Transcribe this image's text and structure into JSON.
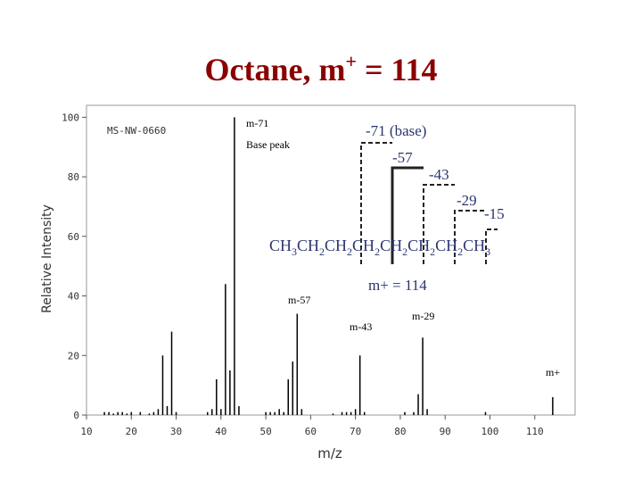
{
  "chart_data": {
    "type": "stem",
    "title_parts": [
      "Octane, m",
      "+",
      " = 114"
    ],
    "x_label": "m/z",
    "y_label": "Relative Intensity",
    "x": [
      14,
      15,
      16,
      17,
      18,
      19,
      20,
      22,
      24,
      25,
      26,
      27,
      28,
      29,
      30,
      37,
      38,
      39,
      40,
      41,
      42,
      43,
      44,
      50,
      51,
      52,
      53,
      54,
      55,
      56,
      57,
      58,
      65,
      67,
      68,
      69,
      70,
      71,
      72,
      81,
      83,
      84,
      85,
      86,
      99,
      114
    ],
    "values": [
      1,
      1,
      0.5,
      1,
      1,
      0.5,
      1,
      1,
      0.5,
      1,
      2,
      20,
      3,
      28,
      1,
      1,
      2,
      12,
      2,
      44,
      15,
      100,
      3,
      1,
      1,
      1,
      2,
      1,
      12,
      18,
      34,
      2,
      0.5,
      1,
      1,
      1,
      2,
      20,
      1,
      1,
      1,
      7,
      26,
      2,
      1,
      6
    ],
    "color": "#000000",
    "xlim": [
      10,
      119
    ],
    "ylim": [
      0,
      104
    ],
    "xticks": [
      10,
      20,
      30,
      40,
      50,
      60,
      70,
      80,
      90,
      100,
      110
    ],
    "yticks": [
      0,
      20,
      40,
      60,
      80,
      100
    ],
    "sample_id": "MS-NW-0660",
    "annotations": [
      "m-71",
      "Base peak",
      "m-57",
      "m-43",
      "m-29",
      "m+"
    ],
    "formula_parts": [
      "CH",
      "3",
      "CH",
      "2",
      "CH",
      "2",
      "CH",
      "2",
      "CH",
      "2",
      "CH",
      "2",
      "CH",
      "2",
      "CH",
      "3"
    ],
    "fragments": [
      "-71 (base)",
      "-57",
      "-43",
      "-29",
      "-15",
      "m+ = 114"
    ]
  }
}
